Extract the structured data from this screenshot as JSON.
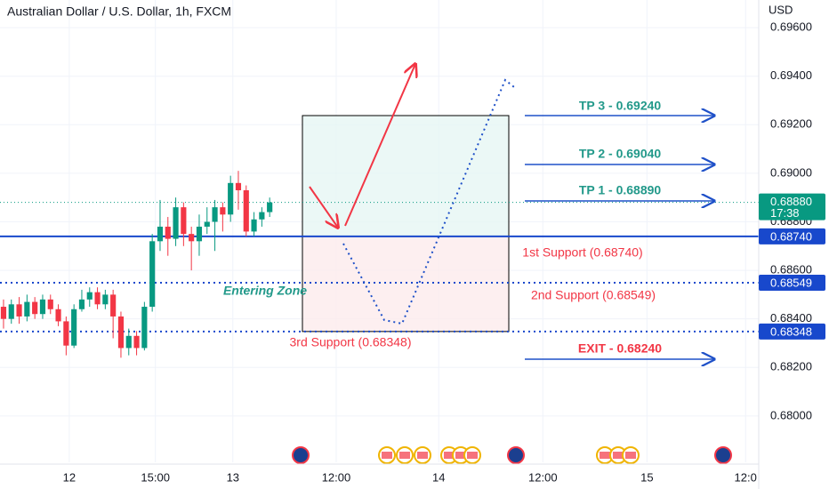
{
  "chart_data": {
    "type": "candlestick",
    "title": "Australian Dollar / U.S. Dollar, 1h, FXCM",
    "currency": "USD",
    "x": [
      0,
      1,
      2,
      3,
      4,
      5,
      6,
      7,
      8,
      9,
      10,
      11,
      12,
      13,
      14,
      15,
      16,
      17,
      18,
      19,
      20,
      21,
      22,
      23,
      24,
      25,
      26,
      27,
      28,
      29,
      30,
      31,
      32,
      33,
      34
    ],
    "open": [
      0.6845,
      0.684,
      0.6846,
      0.6841,
      0.6847,
      0.6842,
      0.6848,
      0.6844,
      0.6839,
      0.6829,
      0.6844,
      0.6848,
      0.6851,
      0.6846,
      0.685,
      0.6841,
      0.6828,
      0.6833,
      0.6828,
      0.6845,
      0.6872,
      0.6878,
      0.6873,
      0.6886,
      0.6875,
      0.6872,
      0.6878,
      0.688,
      0.6886,
      0.6883,
      0.6896,
      0.6893,
      0.6876,
      0.6881,
      0.6884
    ],
    "high": [
      0.6848,
      0.6848,
      0.6849,
      0.685,
      0.6849,
      0.685,
      0.685,
      0.6846,
      0.6841,
      0.6846,
      0.6852,
      0.6853,
      0.6853,
      0.6852,
      0.6852,
      0.6843,
      0.6836,
      0.6835,
      0.6847,
      0.6875,
      0.6889,
      0.6882,
      0.689,
      0.6888,
      0.6878,
      0.6883,
      0.6886,
      0.6889,
      0.6888,
      0.6899,
      0.6901,
      0.6895,
      0.6884,
      0.6886,
      0.689
    ],
    "low": [
      0.6836,
      0.6838,
      0.6838,
      0.6839,
      0.684,
      0.684,
      0.6842,
      0.6837,
      0.6825,
      0.6828,
      0.6843,
      0.6845,
      0.6844,
      0.6844,
      0.6832,
      0.6824,
      0.6825,
      0.6825,
      0.6827,
      0.6843,
      0.6868,
      0.6866,
      0.687,
      0.687,
      0.686,
      0.6866,
      0.6875,
      0.6868,
      0.6876,
      0.688,
      0.6885,
      0.6874,
      0.6874,
      0.6878,
      0.6882
    ],
    "close": [
      0.684,
      0.6846,
      0.6841,
      0.6847,
      0.6842,
      0.6848,
      0.6844,
      0.6839,
      0.6829,
      0.6844,
      0.6848,
      0.6851,
      0.6846,
      0.685,
      0.6841,
      0.6828,
      0.6833,
      0.6828,
      0.6845,
      0.6872,
      0.6878,
      0.6873,
      0.6886,
      0.6875,
      0.6872,
      0.6878,
      0.688,
      0.6886,
      0.6883,
      0.6896,
      0.6893,
      0.6876,
      0.6881,
      0.6884,
      0.6888
    ],
    "up_color": "#089981",
    "down_color": "#f23645",
    "xlim": [
      -0.45,
      96.48
    ],
    "xticks": [
      {
        "value": 8.4,
        "label": "12"
      },
      {
        "value": 19.4,
        "label": "15:00"
      },
      {
        "value": 29.3,
        "label": "13"
      },
      {
        "value": 42.5,
        "label": "12:00"
      },
      {
        "value": 55.6,
        "label": "14"
      },
      {
        "value": 68.9,
        "label": "12:00"
      },
      {
        "value": 82.2,
        "label": "15"
      },
      {
        "value": 94.8,
        "label": "12:0"
      }
    ],
    "ylim": [
      0.67809,
      0.69714
    ],
    "yticks": [
      {
        "value": 0.696,
        "label": "0.69600"
      },
      {
        "value": 0.694,
        "label": "0.69400"
      },
      {
        "value": 0.692,
        "label": "0.69200"
      },
      {
        "value": 0.69,
        "label": "0.69000"
      },
      {
        "value": 0.688,
        "label": "0.68800"
      },
      {
        "value": 0.686,
        "label": "0.68600"
      },
      {
        "value": 0.684,
        "label": "0.68400"
      },
      {
        "value": 0.682,
        "label": "0.68200"
      },
      {
        "value": 0.68,
        "label": "0.68000"
      }
    ],
    "grid": true,
    "levels": [
      {
        "value": 0.6874,
        "label": "0.68740",
        "style": "solid"
      },
      {
        "value": 0.68549,
        "label": "0.68549",
        "style": "dotted"
      },
      {
        "value": 0.68348,
        "label": "0.68348",
        "style": "dotted"
      }
    ],
    "level_color": "#1848cc",
    "last_price": {
      "value": 0.6888,
      "label": "0.68880"
    },
    "countdown": "17:38",
    "annotations": {
      "supports": [
        "1st Support (0.68740)",
        "2nd Support (0.68549)",
        "3rd Support (0.68348)"
      ],
      "zone": "Entering Zone",
      "targets": [
        "TP 3 - 0.69240",
        "TP 2 - 0.69040",
        "TP 1 - 0.68890"
      ],
      "exit": "EXIT - 0.68240"
    }
  }
}
